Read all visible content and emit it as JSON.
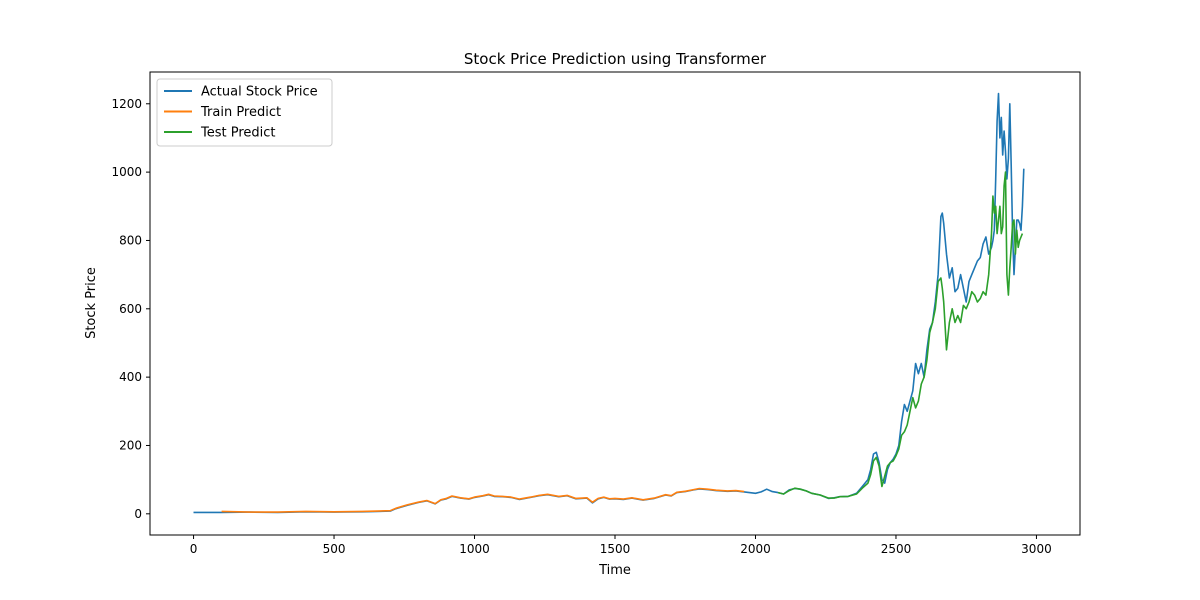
{
  "chart_data": {
    "type": "line",
    "title": "Stock Price Prediction using Transformer",
    "xlabel": "Time",
    "ylabel": "Stock Price",
    "xlim": [
      -155,
      3155
    ],
    "ylim": [
      -62,
      1293
    ],
    "xticks": [
      0,
      500,
      1000,
      1500,
      2000,
      2500,
      3000
    ],
    "xtick_labels": [
      "0",
      "500",
      "1000",
      "1500",
      "2000",
      "2500",
      "3000"
    ],
    "yticks": [
      0,
      200,
      400,
      600,
      800,
      1000,
      1200
    ],
    "ytick_labels": [
      "0",
      "200",
      "400",
      "600",
      "800",
      "1000",
      "1200"
    ],
    "grid": false,
    "legend_position": "top-left",
    "series": [
      {
        "name": "Actual Stock Price",
        "color": "#1f77b4",
        "x": [
          0,
          50,
          100,
          200,
          300,
          400,
          500,
          600,
          700,
          720,
          760,
          800,
          830,
          860,
          880,
          900,
          920,
          950,
          980,
          1000,
          1030,
          1050,
          1070,
          1100,
          1130,
          1160,
          1200,
          1230,
          1260,
          1300,
          1330,
          1360,
          1400,
          1420,
          1440,
          1460,
          1480,
          1500,
          1530,
          1560,
          1600,
          1640,
          1680,
          1700,
          1720,
          1750,
          1780,
          1800,
          1830,
          1860,
          1900,
          1930,
          1960,
          2000,
          2020,
          2040,
          2060,
          2080,
          2100,
          2120,
          2140,
          2160,
          2180,
          2200,
          2230,
          2260,
          2280,
          2300,
          2330,
          2360,
          2380,
          2400,
          2410,
          2420,
          2430,
          2440,
          2450,
          2460,
          2470,
          2480,
          2490,
          2500,
          2510,
          2520,
          2530,
          2540,
          2550,
          2560,
          2570,
          2580,
          2590,
          2600,
          2610,
          2620,
          2630,
          2640,
          2650,
          2660,
          2665,
          2670,
          2680,
          2690,
          2700,
          2710,
          2720,
          2730,
          2740,
          2750,
          2760,
          2770,
          2780,
          2790,
          2800,
          2810,
          2820,
          2830,
          2840,
          2845,
          2850,
          2855,
          2860,
          2865,
          2870,
          2875,
          2880,
          2885,
          2890,
          2895,
          2900,
          2905,
          2910,
          2915,
          2920,
          2925,
          2930,
          2935,
          2940,
          2945,
          2950,
          2955
        ],
        "y": [
          4,
          4,
          4,
          5,
          4,
          6,
          5,
          6,
          8,
          15,
          25,
          33,
          38,
          29,
          40,
          44,
          51,
          46,
          43,
          48,
          52,
          56,
          51,
          50,
          48,
          42,
          48,
          53,
          56,
          50,
          53,
          44,
          46,
          32,
          44,
          48,
          43,
          44,
          42,
          46,
          40,
          45,
          55,
          52,
          62,
          65,
          70,
          73,
          71,
          68,
          66,
          67,
          64,
          60,
          64,
          72,
          65,
          62,
          58,
          70,
          74,
          72,
          67,
          60,
          55,
          45,
          47,
          50,
          51,
          60,
          80,
          100,
          130,
          175,
          180,
          150,
          100,
          90,
          130,
          150,
          160,
          175,
          200,
          270,
          320,
          300,
          330,
          360,
          440,
          410,
          440,
          400,
          480,
          540,
          560,
          620,
          700,
          870,
          880,
          850,
          760,
          690,
          720,
          650,
          660,
          700,
          660,
          620,
          680,
          700,
          720,
          740,
          750,
          790,
          810,
          760,
          780,
          800,
          830,
          980,
          1150,
          1230,
          1100,
          1160,
          1050,
          1120,
          1060,
          980,
          1040,
          1200,
          1020,
          820,
          700,
          780,
          860,
          860,
          850,
          830,
          900,
          1010
        ]
      },
      {
        "name": "Train Predict",
        "color": "#ff7f0e",
        "x": [
          100,
          200,
          300,
          400,
          500,
          600,
          700,
          720,
          760,
          800,
          830,
          860,
          880,
          900,
          920,
          950,
          980,
          1000,
          1030,
          1050,
          1070,
          1100,
          1130,
          1160,
          1200,
          1230,
          1260,
          1300,
          1330,
          1360,
          1400,
          1420,
          1440,
          1460,
          1480,
          1500,
          1530,
          1560,
          1600,
          1640,
          1680,
          1700,
          1720,
          1750,
          1780,
          1800,
          1830,
          1860,
          1900,
          1930,
          1960
        ],
        "y": [
          7,
          5,
          5,
          7,
          6,
          7,
          9,
          16,
          26,
          34,
          39,
          30,
          41,
          45,
          52,
          47,
          44,
          49,
          53,
          57,
          52,
          51,
          49,
          43,
          49,
          54,
          57,
          51,
          54,
          45,
          47,
          34,
          45,
          49,
          44,
          45,
          43,
          47,
          41,
          46,
          56,
          53,
          63,
          66,
          71,
          74,
          72,
          69,
          67,
          68,
          65
        ]
      },
      {
        "name": "Test Predict",
        "color": "#2ca02c",
        "x": [
          2080,
          2100,
          2120,
          2140,
          2160,
          2180,
          2200,
          2230,
          2260,
          2280,
          2300,
          2330,
          2360,
          2380,
          2400,
          2410,
          2420,
          2430,
          2440,
          2450,
          2460,
          2470,
          2480,
          2490,
          2500,
          2510,
          2520,
          2530,
          2540,
          2550,
          2560,
          2570,
          2580,
          2590,
          2600,
          2610,
          2620,
          2630,
          2640,
          2650,
          2660,
          2665,
          2670,
          2680,
          2690,
          2700,
          2710,
          2720,
          2730,
          2740,
          2750,
          2760,
          2770,
          2780,
          2790,
          2800,
          2810,
          2820,
          2830,
          2840,
          2845,
          2850,
          2855,
          2860,
          2865,
          2870,
          2875,
          2880,
          2885,
          2890,
          2895,
          2900,
          2905,
          2910,
          2915,
          2920,
          2925,
          2930,
          2935,
          2940,
          2945,
          2950
        ],
        "y": [
          62,
          58,
          68,
          75,
          72,
          67,
          60,
          55,
          46,
          46,
          50,
          51,
          58,
          75,
          90,
          115,
          155,
          165,
          140,
          80,
          110,
          140,
          150,
          155,
          170,
          190,
          230,
          240,
          260,
          300,
          340,
          310,
          330,
          380,
          400,
          450,
          530,
          560,
          600,
          680,
          690,
          660,
          620,
          480,
          560,
          600,
          560,
          580,
          560,
          610,
          600,
          620,
          650,
          640,
          620,
          630,
          650,
          640,
          700,
          820,
          930,
          880,
          900,
          820,
          860,
          900,
          820,
          840,
          960,
          1000,
          700,
          640,
          720,
          780,
          850,
          860,
          760,
          830,
          780,
          800,
          810,
          820
        ]
      }
    ]
  }
}
